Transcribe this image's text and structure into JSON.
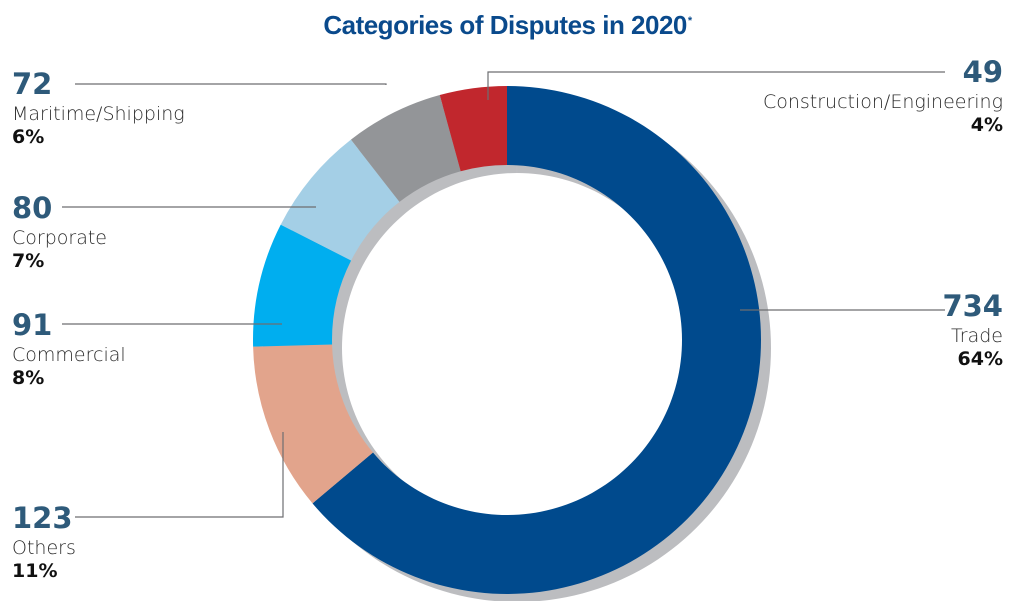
{
  "title": "Categories of Disputes in 2020",
  "title_mark": "*",
  "chart_data": {
    "type": "pie",
    "donut": true,
    "title": "Categories of Disputes in 2020",
    "slices": [
      {
        "label": "Trade",
        "value": 734,
        "percent": "64%",
        "color": "#004a8d"
      },
      {
        "label": "Others",
        "value": 123,
        "percent": "11%",
        "color": "#e2a48c"
      },
      {
        "label": "Commercial",
        "value": 91,
        "percent": "8%",
        "color": "#00aeef"
      },
      {
        "label": "Corporate",
        "value": 80,
        "percent": "7%",
        "color": "#a4cfe6"
      },
      {
        "label": "Maritime/Shipping",
        "value": 72,
        "percent": "6%",
        "color": "#939598"
      },
      {
        "label": "Construction/Engineering",
        "value": 49,
        "percent": "4%",
        "color": "#c1272d"
      }
    ]
  }
}
